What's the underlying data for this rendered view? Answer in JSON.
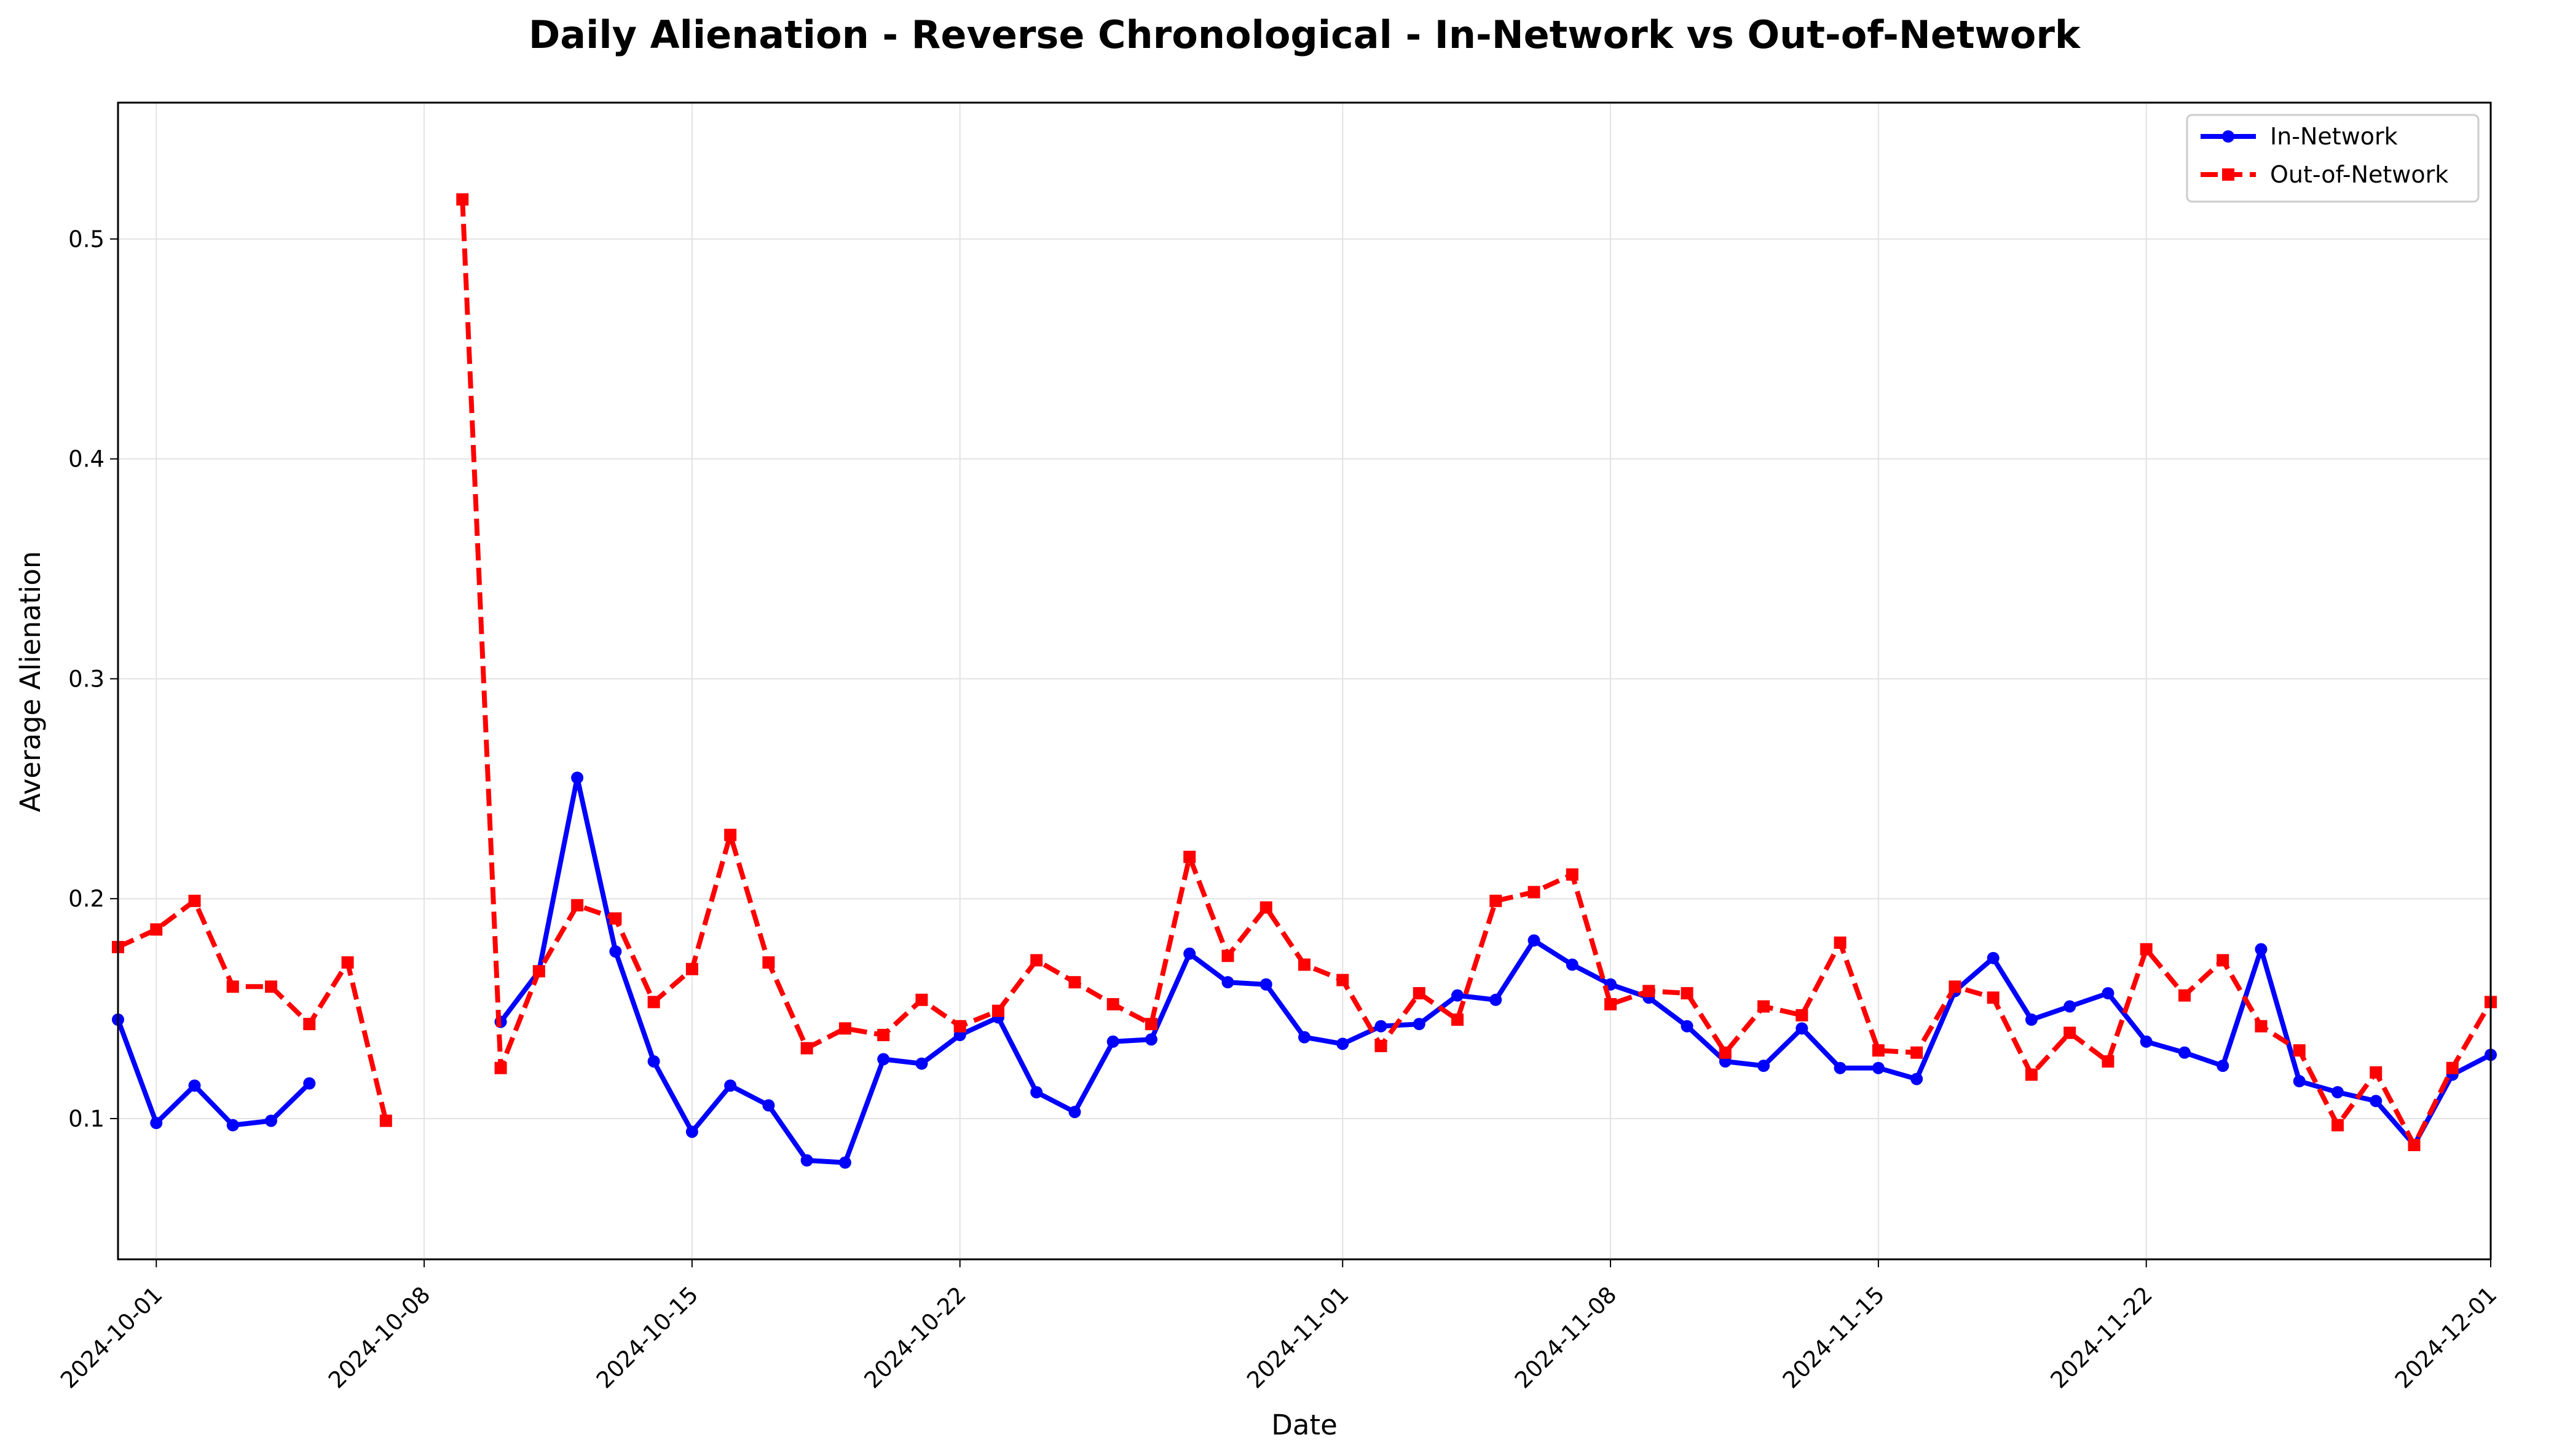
{
  "chart_data": {
    "type": "line",
    "title": "Daily Alienation - Reverse Chronological - In-Network vs Out-of-Network",
    "xlabel": "Date",
    "ylabel": "Average Alienation",
    "x_start": "2024-09-30",
    "x_end": "2024-12-01",
    "xlim": [
      "2024-09-30",
      "2024-12-01"
    ],
    "ylim": [
      0.036,
      0.562
    ],
    "x_ticks": [
      "2024-10-01",
      "2024-10-08",
      "2024-10-15",
      "2024-10-22",
      "2024-11-01",
      "2024-11-08",
      "2024-11-15",
      "2024-11-22",
      "2024-12-01"
    ],
    "y_ticks": [
      "0.1",
      "0.2",
      "0.3",
      "0.4",
      "0.5"
    ],
    "grid": true,
    "legend_position": "top-right",
    "series": [
      {
        "name": "In-Network",
        "color": "#0000ff",
        "style": "solid",
        "marker": "circle",
        "values": [
          0.145,
          0.098,
          0.115,
          0.097,
          0.099,
          0.116,
          null,
          null,
          null,
          null,
          0.144,
          0.167,
          0.255,
          0.176,
          0.126,
          0.094,
          0.115,
          0.106,
          0.081,
          0.08,
          0.127,
          0.125,
          0.138,
          0.146,
          0.112,
          0.103,
          0.135,
          0.136,
          0.175,
          0.162,
          0.161,
          0.137,
          0.134,
          0.142,
          0.143,
          0.156,
          0.154,
          0.181,
          0.17,
          0.161,
          0.155,
          0.142,
          0.126,
          0.124,
          0.141,
          0.123,
          0.123,
          0.118,
          0.158,
          0.173,
          0.145,
          0.151,
          0.157,
          0.135,
          0.13,
          0.124,
          0.177,
          0.117,
          0.112,
          0.108,
          0.088,
          0.12,
          0.129
        ]
      },
      {
        "name": "Out-of-Network",
        "color": "#ff0000",
        "style": "dashed",
        "marker": "square",
        "values": [
          0.178,
          0.186,
          0.199,
          0.16,
          0.16,
          0.143,
          0.171,
          0.099,
          null,
          0.518,
          0.123,
          0.167,
          0.197,
          0.191,
          0.153,
          0.168,
          0.229,
          0.171,
          0.132,
          0.141,
          0.138,
          0.154,
          0.142,
          0.149,
          0.172,
          0.162,
          0.152,
          0.143,
          0.219,
          0.174,
          0.196,
          0.17,
          0.163,
          0.133,
          0.157,
          0.145,
          0.199,
          0.203,
          0.211,
          0.152,
          0.158,
          0.157,
          0.13,
          0.151,
          0.147,
          0.18,
          0.131,
          0.13,
          0.16,
          0.155,
          0.12,
          0.139,
          0.126,
          0.177,
          0.156,
          0.172,
          0.142,
          0.131,
          0.097,
          0.121,
          0.088,
          0.123,
          0.153
        ]
      }
    ]
  }
}
